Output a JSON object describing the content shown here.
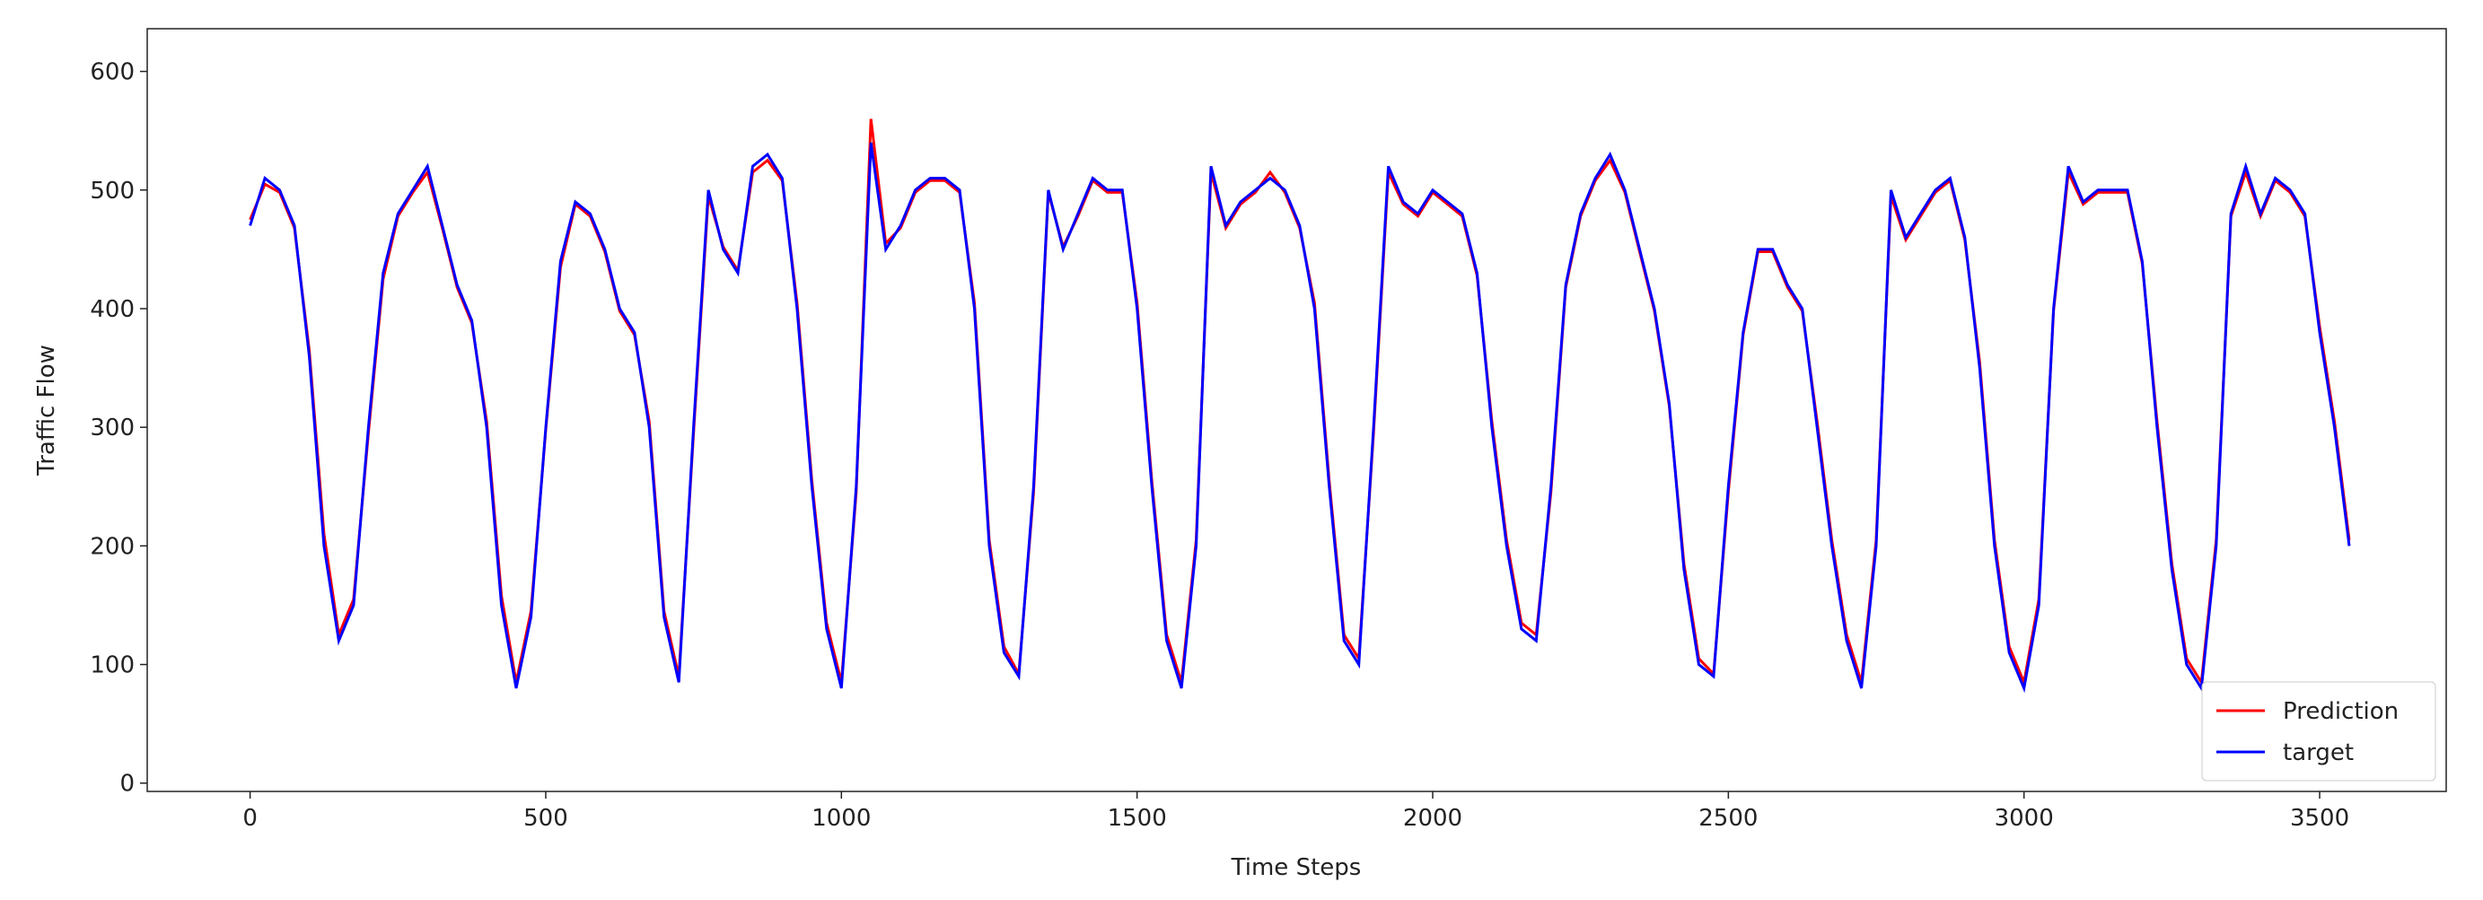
{
  "chart_data": {
    "type": "line",
    "xlabel": "Time Steps",
    "ylabel": "Traffic Flow",
    "x": [
      0,
      25,
      50,
      75,
      100,
      125,
      150,
      175,
      200,
      225,
      250,
      275,
      300,
      325,
      350,
      375,
      400,
      425,
      450,
      475,
      500,
      525,
      550,
      575,
      600,
      625,
      650,
      675,
      700,
      725,
      750,
      775,
      800,
      825,
      850,
      875,
      900,
      925,
      950,
      975,
      1000,
      1025,
      1050,
      1075,
      1100,
      1125,
      1150,
      1175,
      1200,
      1225,
      1250,
      1275,
      1300,
      1325,
      1350,
      1375,
      1400,
      1425,
      1450,
      1475,
      1500,
      1525,
      1550,
      1575,
      1600,
      1625,
      1650,
      1675,
      1700,
      1725,
      1750,
      1775,
      1800,
      1825,
      1850,
      1875,
      1900,
      1925,
      1950,
      1975,
      2000,
      2025,
      2050,
      2075,
      2100,
      2125,
      2150,
      2175,
      2200,
      2225,
      2250,
      2275,
      2300,
      2325,
      2350,
      2375,
      2400,
      2425,
      2450,
      2475,
      2500,
      2525,
      2550,
      2575,
      2600,
      2625,
      2650,
      2675,
      2700,
      2725,
      2750,
      2775,
      2800,
      2825,
      2850,
      2875,
      2900,
      2925,
      2950,
      2975,
      3000,
      3025,
      3050,
      3075,
      3100,
      3125,
      3150,
      3175,
      3200,
      3225,
      3250,
      3275,
      3300,
      3325,
      3350,
      3375,
      3400,
      3425,
      3450,
      3475,
      3500,
      3525,
      3550
    ],
    "series": [
      {
        "name": "Prediction",
        "color": "#ff0000",
        "values": [
          475,
          505,
          498,
          468,
          365,
          210,
          125,
          155,
          295,
          425,
          478,
          498,
          515,
          468,
          418,
          388,
          305,
          158,
          85,
          145,
          298,
          435,
          488,
          478,
          448,
          398,
          378,
          305,
          145,
          90,
          295,
          495,
          452,
          432,
          515,
          525,
          508,
          405,
          255,
          135,
          85,
          245,
          560,
          455,
          468,
          498,
          508,
          508,
          498,
          405,
          205,
          115,
          92,
          245,
          498,
          452,
          478,
          508,
          498,
          498,
          405,
          255,
          125,
          85,
          205,
          515,
          468,
          488,
          498,
          515,
          498,
          468,
          405,
          255,
          125,
          105,
          295,
          515,
          488,
          478,
          498,
          488,
          478,
          428,
          305,
          205,
          135,
          125,
          245,
          418,
          478,
          508,
          525,
          498,
          448,
          398,
          318,
          185,
          105,
          92,
          245,
          378,
          448,
          448,
          418,
          398,
          305,
          205,
          125,
          85,
          205,
          495,
          458,
          478,
          498,
          508,
          458,
          355,
          205,
          115,
          85,
          155,
          398,
          515,
          488,
          498,
          498,
          498,
          438,
          305,
          185,
          105,
          85,
          205,
          478,
          515,
          478,
          508,
          498,
          478,
          385,
          305,
          205
        ]
      },
      {
        "name": "target",
        "color": "#0000ff",
        "values": [
          470,
          510,
          500,
          470,
          360,
          200,
          120,
          150,
          300,
          430,
          480,
          500,
          520,
          470,
          420,
          390,
          300,
          150,
          80,
          140,
          300,
          440,
          490,
          480,
          450,
          400,
          380,
          300,
          140,
          85,
          300,
          500,
          450,
          430,
          520,
          530,
          510,
          400,
          250,
          130,
          80,
          250,
          540,
          450,
          470,
          500,
          510,
          510,
          500,
          400,
          200,
          110,
          90,
          250,
          500,
          450,
          480,
          510,
          500,
          500,
          400,
          250,
          120,
          80,
          200,
          520,
          470,
          490,
          500,
          510,
          500,
          470,
          400,
          250,
          120,
          100,
          300,
          520,
          490,
          480,
          500,
          490,
          480,
          430,
          300,
          200,
          130,
          120,
          250,
          420,
          480,
          510,
          530,
          500,
          450,
          400,
          320,
          180,
          100,
          90,
          250,
          380,
          450,
          450,
          420,
          400,
          300,
          200,
          120,
          80,
          200,
          500,
          460,
          480,
          500,
          510,
          460,
          350,
          200,
          110,
          80,
          150,
          400,
          520,
          490,
          500,
          500,
          500,
          440,
          300,
          180,
          100,
          80,
          200,
          480,
          520,
          480,
          510,
          500,
          480,
          380,
          300,
          200
        ]
      }
    ],
    "xlim": [
      -174,
      3714
    ],
    "ylim": [
      -7,
      636
    ],
    "xticks": [
      0,
      500,
      1000,
      1500,
      2000,
      2500,
      3000,
      3500
    ],
    "yticks": [
      0,
      100,
      200,
      300,
      400,
      500,
      600
    ],
    "legend": "lower right"
  }
}
